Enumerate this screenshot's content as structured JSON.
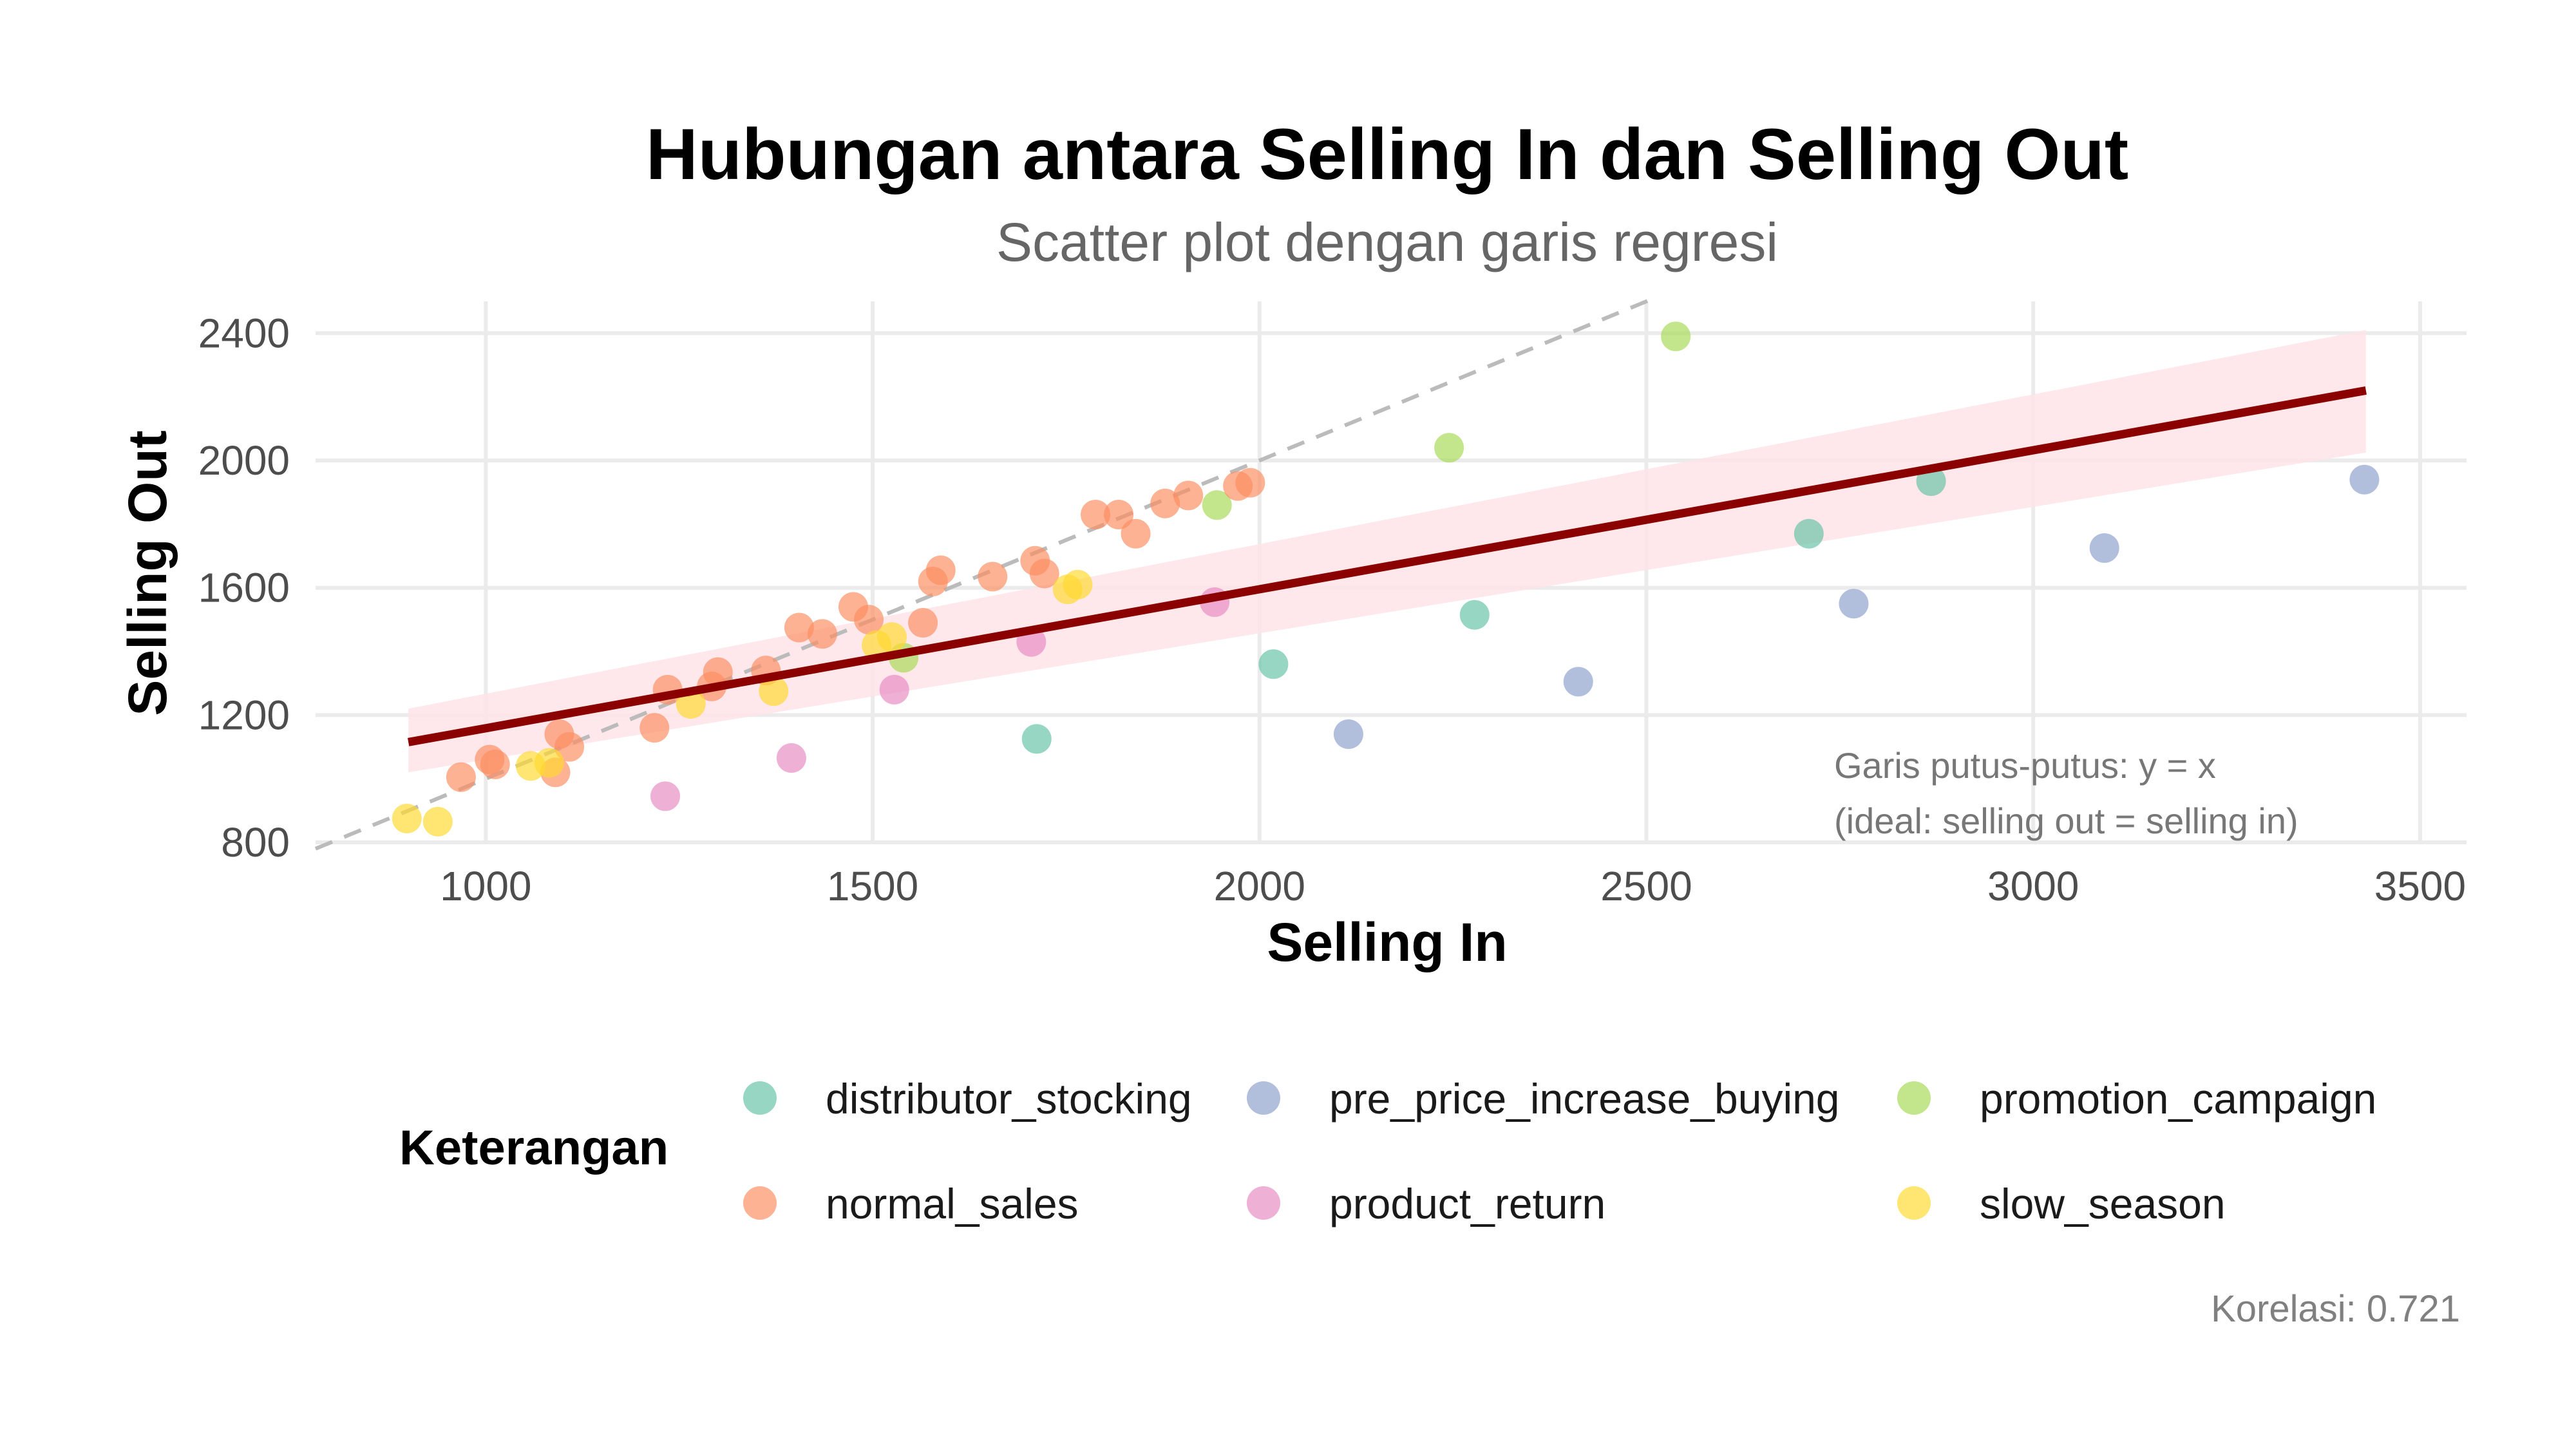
{
  "chart_data": {
    "type": "scatter",
    "title": "Hubungan antara Selling In dan Selling Out",
    "subtitle": "Scatter plot dengan garis regresi",
    "xlabel": "Selling In",
    "ylabel": "Selling Out",
    "xlim": [
      780,
      3560
    ],
    "ylim": [
      800,
      2500
    ],
    "x_ticks": [
      1000,
      1500,
      2000,
      2500,
      3000,
      3500
    ],
    "y_ticks": [
      800,
      1200,
      1600,
      2000,
      2400
    ],
    "x_tick_labels": [
      "1000",
      "1500",
      "2000",
      "2500",
      "3000",
      "3500"
    ],
    "y_tick_labels": [
      "800",
      "1200",
      "1600",
      "2000",
      "2400"
    ],
    "grid": true,
    "legend_title": "Keterangan",
    "legend_position": "bottom",
    "legend_rows": [
      [
        "distributor_stocking",
        "pre_price_increase_buying",
        "promotion_campaign"
      ],
      [
        "normal_sales",
        "product_return",
        "slow_season"
      ]
    ],
    "colors": {
      "distributor_stocking": "#66c2a5",
      "pre_price_increase_buying": "#8da0cb",
      "promotion_campaign": "#a6d854",
      "normal_sales": "#fc8d62",
      "product_return": "#e78ac3",
      "slow_season": "#ffd92f",
      "regression_line": "#8b0000",
      "confidence_band": "#ffe4e7",
      "identity_line": "#bbbbbb"
    },
    "series": [
      {
        "name": "distributor_stocking",
        "points": [
          [
            1712,
            1125
          ],
          [
            2018,
            1360
          ],
          [
            2278,
            1515
          ],
          [
            2710,
            1770
          ],
          [
            2868,
            1935
          ]
        ]
      },
      {
        "name": "pre_price_increase_buying",
        "points": [
          [
            2115,
            1140
          ],
          [
            2412,
            1305
          ],
          [
            2768,
            1550
          ],
          [
            3092,
            1725
          ],
          [
            3428,
            1940
          ]
        ]
      },
      {
        "name": "promotion_campaign",
        "points": [
          [
            1540,
            1380
          ],
          [
            1945,
            1860
          ],
          [
            2245,
            2040
          ],
          [
            2538,
            2390
          ]
        ]
      },
      {
        "name": "normal_sales",
        "points": [
          [
            968,
            1005
          ],
          [
            1005,
            1060
          ],
          [
            1012,
            1045
          ],
          [
            1090,
            1020
          ],
          [
            1095,
            1140
          ],
          [
            1108,
            1100
          ],
          [
            1218,
            1160
          ],
          [
            1235,
            1280
          ],
          [
            1292,
            1290
          ],
          [
            1300,
            1335
          ],
          [
            1362,
            1340
          ],
          [
            1405,
            1475
          ],
          [
            1435,
            1455
          ],
          [
            1475,
            1540
          ],
          [
            1495,
            1500
          ],
          [
            1565,
            1490
          ],
          [
            1578,
            1620
          ],
          [
            1588,
            1655
          ],
          [
            1655,
            1635
          ],
          [
            1710,
            1685
          ],
          [
            1722,
            1645
          ],
          [
            1788,
            1830
          ],
          [
            1818,
            1830
          ],
          [
            1840,
            1770
          ],
          [
            1878,
            1865
          ],
          [
            1908,
            1890
          ],
          [
            1972,
            1920
          ],
          [
            1988,
            1930
          ]
        ]
      },
      {
        "name": "product_return",
        "points": [
          [
            1232,
            945
          ],
          [
            1395,
            1065
          ],
          [
            1528,
            1280
          ],
          [
            1705,
            1430
          ],
          [
            1942,
            1555
          ]
        ]
      },
      {
        "name": "slow_season",
        "points": [
          [
            898,
            875
          ],
          [
            938,
            865
          ],
          [
            1058,
            1040
          ],
          [
            1082,
            1050
          ],
          [
            1265,
            1235
          ],
          [
            1372,
            1275
          ],
          [
            1505,
            1420
          ],
          [
            1525,
            1445
          ],
          [
            1752,
            1595
          ],
          [
            1765,
            1610
          ]
        ]
      }
    ],
    "regression": {
      "x_start": 900,
      "x_end": 3430,
      "y_start": 1115,
      "y_end": 2220,
      "band_lo": [
        1020,
        2025
      ],
      "band_hi": [
        1220,
        2410
      ]
    },
    "identity_line": {
      "x": [
        780,
        2510
      ],
      "y": [
        780,
        2510
      ]
    },
    "annotations": [
      "Garis putus-putus: y = x",
      "(ideal: selling out = selling in)"
    ],
    "correlation_label": "Korelasi: 0.721"
  }
}
